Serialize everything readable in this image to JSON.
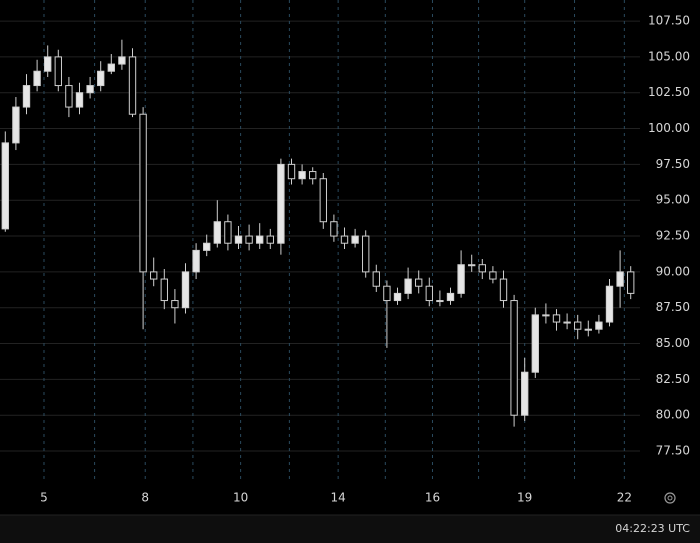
{
  "chart_data": {
    "type": "candlestick",
    "open": [
      93,
      99,
      101.5,
      103,
      104,
      105,
      103,
      101.5,
      102.5,
      103,
      104,
      104.5,
      105,
      101,
      90,
      89.5,
      88,
      87.5,
      90,
      91.5,
      92,
      93.5,
      92,
      92.5,
      92,
      92.5,
      92,
      97.5,
      96.5,
      97,
      96.5,
      93.5,
      92.5,
      92,
      92.5,
      90,
      89,
      88,
      88.5,
      89.5,
      89,
      88,
      88,
      88.5,
      90.5,
      90.5,
      90,
      89.5,
      88,
      80,
      83,
      87,
      87,
      86.5,
      86.5,
      86,
      86,
      86.5,
      89,
      90
    ],
    "high": [
      99.8,
      102.2,
      103.8,
      104.8,
      105.8,
      105.5,
      103.6,
      103.2,
      103.6,
      104.7,
      105.2,
      106.2,
      105.6,
      101.5,
      91,
      90.2,
      88.8,
      90.6,
      92,
      92.6,
      95,
      94,
      93.2,
      93.3,
      93.4,
      93,
      97.9,
      97.9,
      97.5,
      97.3,
      96.9,
      94,
      93.1,
      93,
      92.9,
      90.5,
      89.4,
      88.9,
      90.3,
      90.1,
      89.6,
      88.7,
      88.9,
      91.5,
      91.2,
      90.9,
      90.4,
      90.1,
      88.4,
      84,
      87.5,
      87.8,
      87.4,
      87.1,
      87,
      86.6,
      87,
      89.5,
      91.5,
      90.4
    ],
    "low": [
      92.8,
      98.5,
      101,
      102.6,
      103.6,
      102.6,
      100.8,
      101,
      102.1,
      102.6,
      103.8,
      104.1,
      100.8,
      86,
      89,
      87.4,
      86.4,
      87.1,
      89.5,
      91.1,
      91.7,
      91.5,
      91.6,
      91.5,
      91.6,
      91.6,
      91.2,
      96.1,
      96.1,
      96.1,
      93,
      92.1,
      91.6,
      91.7,
      89.6,
      88.6,
      84.7,
      87.7,
      88.1,
      88.5,
      87.6,
      87.6,
      87.7,
      88.2,
      90,
      89.5,
      89.2,
      87.5,
      79.2,
      79.6,
      82.6,
      86.4,
      85.9,
      86,
      85.3,
      85.5,
      85.7,
      86.2,
      87.5,
      88.1
    ],
    "close": [
      99,
      101.5,
      103,
      104,
      105,
      103,
      101.5,
      102.5,
      103,
      104,
      104.5,
      105,
      101,
      90,
      89.5,
      88,
      87.5,
      90,
      91.5,
      92,
      93.5,
      92,
      92.5,
      92,
      92.5,
      92,
      97.5,
      96.5,
      97,
      96.5,
      93.5,
      92.5,
      92,
      92.5,
      90,
      89,
      88,
      88.5,
      89.5,
      89,
      88,
      88,
      88.5,
      90.5,
      90.5,
      90,
      89.5,
      88,
      80,
      83,
      87,
      87,
      86.5,
      86.5,
      86,
      86,
      86.5,
      89,
      90,
      88.5
    ],
    "up_color": "#e6e6e6",
    "down_color": "#000000",
    "wick_color": "#cfcfcf",
    "xlim": [
      0,
      60
    ],
    "xticks": [
      {
        "value": 4.15,
        "label": "5"
      },
      {
        "value": 13.7,
        "label": "8"
      },
      {
        "value": 22.7,
        "label": "10"
      },
      {
        "value": 31.9,
        "label": "14"
      },
      {
        "value": 40.8,
        "label": "16"
      },
      {
        "value": 49.5,
        "label": "19"
      },
      {
        "value": 58.9,
        "label": "22"
      }
    ],
    "ylim": [
      75.27,
      108.97
    ],
    "yticks": [
      {
        "value": 77.5,
        "label": "77.50"
      },
      {
        "value": 80,
        "label": "80.00"
      },
      {
        "value": 82.5,
        "label": "82.50"
      },
      {
        "value": 85,
        "label": "85.00"
      },
      {
        "value": 87.5,
        "label": "87.50"
      },
      {
        "value": 90,
        "label": "90.00"
      },
      {
        "value": 92.5,
        "label": "92.50"
      },
      {
        "value": 95,
        "label": "95.00"
      },
      {
        "value": 97.5,
        "label": "97.50"
      },
      {
        "value": 100,
        "label": "100.00"
      },
      {
        "value": 102.5,
        "label": "102.50"
      },
      {
        "value": 105,
        "label": "105.00"
      },
      {
        "value": 107.5,
        "label": "107.50"
      }
    ],
    "grid": true
  },
  "status_bar": {
    "time": "04:22:23 UTC"
  }
}
